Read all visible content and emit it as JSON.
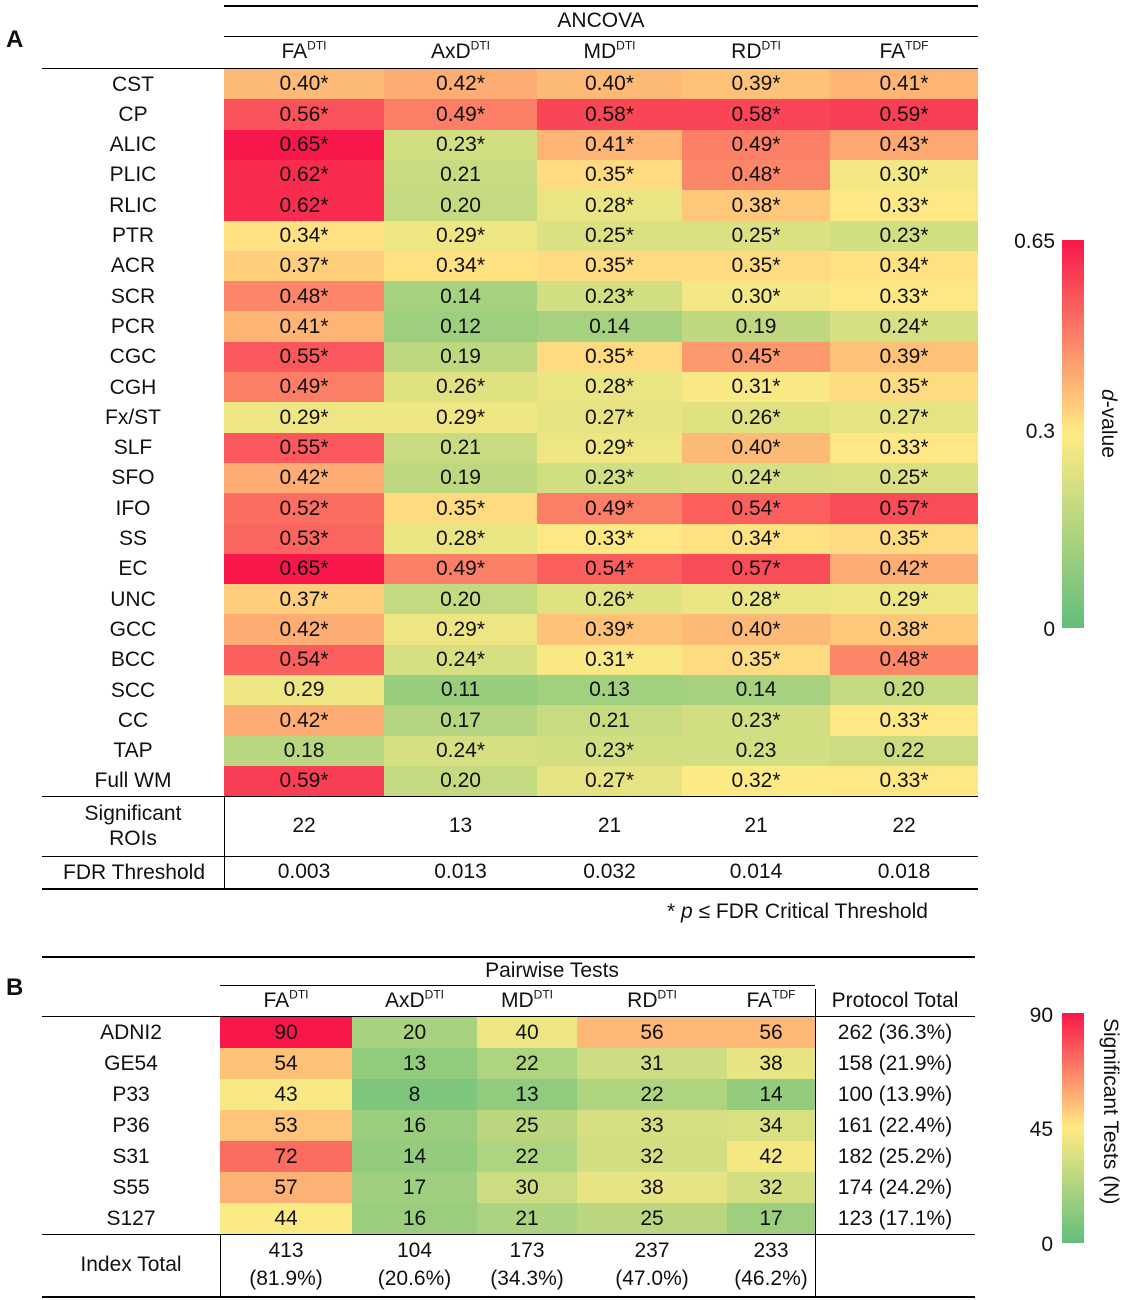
{
  "panelA": {
    "label": "A",
    "title": "ANCOVA",
    "columns": [
      {
        "base": "FA",
        "sup": "DTI"
      },
      {
        "base": "AxD",
        "sup": "DTI"
      },
      {
        "base": "MD",
        "sup": "DTI"
      },
      {
        "base": "RD",
        "sup": "DTI"
      },
      {
        "base": "FA",
        "sup": "TDF"
      }
    ],
    "rows": [
      {
        "label": "CST",
        "cells": [
          "0.40*",
          "0.42*",
          "0.40*",
          "0.39*",
          "0.41*"
        ]
      },
      {
        "label": "CP",
        "cells": [
          "0.56*",
          "0.49*",
          "0.58*",
          "0.58*",
          "0.59*"
        ]
      },
      {
        "label": "ALIC",
        "cells": [
          "0.65*",
          "0.23*",
          "0.41*",
          "0.49*",
          "0.43*"
        ]
      },
      {
        "label": "PLIC",
        "cells": [
          "0.62*",
          "0.21",
          "0.35*",
          "0.48*",
          "0.30*"
        ]
      },
      {
        "label": "RLIC",
        "cells": [
          "0.62*",
          "0.20",
          "0.28*",
          "0.38*",
          "0.33*"
        ]
      },
      {
        "label": "PTR",
        "cells": [
          "0.34*",
          "0.29*",
          "0.25*",
          "0.25*",
          "0.23*"
        ]
      },
      {
        "label": "ACR",
        "cells": [
          "0.37*",
          "0.34*",
          "0.35*",
          "0.35*",
          "0.34*"
        ]
      },
      {
        "label": "SCR",
        "cells": [
          "0.48*",
          "0.14",
          "0.23*",
          "0.30*",
          "0.33*"
        ]
      },
      {
        "label": "PCR",
        "cells": [
          "0.41*",
          "0.12",
          "0.14",
          "0.19",
          "0.24*"
        ]
      },
      {
        "label": "CGC",
        "cells": [
          "0.55*",
          "0.19",
          "0.35*",
          "0.45*",
          "0.39*"
        ]
      },
      {
        "label": "CGH",
        "cells": [
          "0.49*",
          "0.26*",
          "0.28*",
          "0.31*",
          "0.35*"
        ]
      },
      {
        "label": "Fx/ST",
        "cells": [
          "0.29*",
          "0.29*",
          "0.27*",
          "0.26*",
          "0.27*"
        ]
      },
      {
        "label": "SLF",
        "cells": [
          "0.55*",
          "0.21",
          "0.29*",
          "0.40*",
          "0.33*"
        ]
      },
      {
        "label": "SFO",
        "cells": [
          "0.42*",
          "0.19",
          "0.23*",
          "0.24*",
          "0.25*"
        ]
      },
      {
        "label": "IFO",
        "cells": [
          "0.52*",
          "0.35*",
          "0.49*",
          "0.54*",
          "0.57*"
        ]
      },
      {
        "label": "SS",
        "cells": [
          "0.53*",
          "0.28*",
          "0.33*",
          "0.34*",
          "0.35*"
        ]
      },
      {
        "label": "EC",
        "cells": [
          "0.65*",
          "0.49*",
          "0.54*",
          "0.57*",
          "0.42*"
        ]
      },
      {
        "label": "UNC",
        "cells": [
          "0.37*",
          "0.20",
          "0.26*",
          "0.28*",
          "0.29*"
        ]
      },
      {
        "label": "GCC",
        "cells": [
          "0.42*",
          "0.29*",
          "0.39*",
          "0.40*",
          "0.38*"
        ]
      },
      {
        "label": "BCC",
        "cells": [
          "0.54*",
          "0.24*",
          "0.31*",
          "0.35*",
          "0.48*"
        ]
      },
      {
        "label": "SCC",
        "cells": [
          "0.29",
          "0.11",
          "0.13",
          "0.14",
          "0.20"
        ]
      },
      {
        "label": "CC",
        "cells": [
          "0.42*",
          "0.17",
          "0.21",
          "0.23*",
          "0.33*"
        ]
      },
      {
        "label": "TAP",
        "cells": [
          "0.18",
          "0.24*",
          "0.23*",
          "0.23",
          "0.22"
        ]
      },
      {
        "label": "Full WM",
        "cells": [
          "0.59*",
          "0.20",
          "0.27*",
          "0.32*",
          "0.33*"
        ]
      }
    ],
    "significant": {
      "label_line1": "Significant",
      "label_line2": "ROIs",
      "values": [
        "22",
        "13",
        "21",
        "21",
        "22"
      ]
    },
    "fdr": {
      "label": "FDR Threshold",
      "values": [
        "0.003",
        "0.013",
        "0.032",
        "0.014",
        "0.018"
      ]
    },
    "footnote": {
      "star": "*",
      "p": "p",
      "rest": "≤ FDR Critical Threshold"
    },
    "colorbar": {
      "min": 0,
      "max": 0.65,
      "ticks": [
        "0.65",
        "0.3",
        "0"
      ],
      "title_italic": "d",
      "title_rest": "-value"
    }
  },
  "panelB": {
    "label": "B",
    "title": "Pairwise Tests",
    "columns": [
      {
        "base": "FA",
        "sup": "DTI"
      },
      {
        "base": "AxD",
        "sup": "DTI"
      },
      {
        "base": "MD",
        "sup": "DTI"
      },
      {
        "base": "RD",
        "sup": "DTI"
      },
      {
        "base": "FA",
        "sup": "TDF"
      }
    ],
    "protocol_header": "Protocol Total",
    "rows": [
      {
        "label": "ADNI2",
        "cells": [
          90,
          20,
          40,
          56,
          56
        ],
        "total": "262 (36.3%)"
      },
      {
        "label": "GE54",
        "cells": [
          54,
          13,
          22,
          31,
          38
        ],
        "total": "158 (21.9%)"
      },
      {
        "label": "P33",
        "cells": [
          43,
          8,
          13,
          22,
          14
        ],
        "total": "100 (13.9%)"
      },
      {
        "label": "P36",
        "cells": [
          53,
          16,
          25,
          33,
          34
        ],
        "total": "161 (22.4%)"
      },
      {
        "label": "S31",
        "cells": [
          72,
          14,
          22,
          32,
          42
        ],
        "total": "182 (25.2%)"
      },
      {
        "label": "S55",
        "cells": [
          57,
          17,
          30,
          38,
          32
        ],
        "total": "174 (24.2%)"
      },
      {
        "label": "S127",
        "cells": [
          44,
          16,
          21,
          25,
          17
        ],
        "total": "123 (17.1%)"
      }
    ],
    "index_total": {
      "label": "Index Total",
      "values": [
        "413",
        "104",
        "173",
        "237",
        "233"
      ],
      "percents": [
        "(81.9%)",
        "(20.6%)",
        "(34.3%)",
        "(47.0%)",
        "(46.2%)"
      ]
    },
    "colorbar": {
      "min": 0,
      "max": 90,
      "ticks": [
        "90",
        "45",
        "0"
      ],
      "title": "Significant Tests (N)"
    }
  },
  "colors": {
    "low": "#63be7b",
    "mid": "#ffeb84",
    "high": "#f8174a"
  },
  "chart_data": [
    {
      "type": "heatmap",
      "title": "ANCOVA",
      "x": [
        "FA DTI",
        "AxD DTI",
        "MD DTI",
        "RD DTI",
        "FA TDF"
      ],
      "y": [
        "CST",
        "CP",
        "ALIC",
        "PLIC",
        "RLIC",
        "PTR",
        "ACR",
        "SCR",
        "PCR",
        "CGC",
        "CGH",
        "Fx/ST",
        "SLF",
        "SFO",
        "IFO",
        "SS",
        "EC",
        "UNC",
        "GCC",
        "BCC",
        "SCC",
        "CC",
        "TAP",
        "Full WM"
      ],
      "value_range": [
        0,
        0.65
      ],
      "legend": "right"
    },
    {
      "type": "heatmap",
      "title": "Pairwise Tests",
      "x": [
        "FA DTI",
        "AxD DTI",
        "MD DTI",
        "RD DTI",
        "FA TDF"
      ],
      "y": [
        "ADNI2",
        "GE54",
        "P33",
        "P36",
        "S31",
        "S55",
        "S127"
      ],
      "value_range": [
        0,
        90
      ],
      "legend": "right"
    }
  ]
}
